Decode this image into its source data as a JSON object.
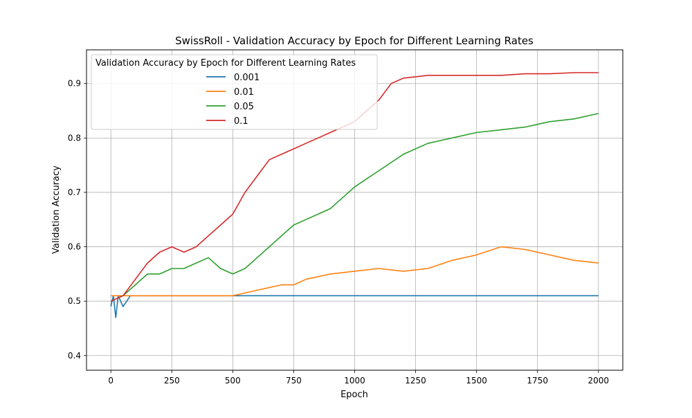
{
  "chart_data": {
    "type": "line",
    "title": "SwissRoll - Validation Accuracy by Epoch for Different Learning Rates",
    "xlabel": "Epoch",
    "ylabel": "Validation Accuracy",
    "xlim": [
      -100,
      2100
    ],
    "ylim": [
      0.373,
      0.962
    ],
    "xticks": [
      0,
      250,
      500,
      750,
      1000,
      1250,
      1500,
      1750,
      2000
    ],
    "yticks": [
      0.4,
      0.5,
      0.6,
      0.7,
      0.8,
      0.9
    ],
    "xtick_labels": [
      "0",
      "250",
      "500",
      "750",
      "1000",
      "1250",
      "1500",
      "1750",
      "2000"
    ],
    "ytick_labels": [
      "0.4",
      "0.5",
      "0.6",
      "0.7",
      "0.8",
      "0.9"
    ],
    "grid": true,
    "legend": {
      "title": "Validation Accuracy by Epoch for Different Learning Rates",
      "position": "upper-left"
    },
    "series": [
      {
        "name": "0.001",
        "color": "#1f77b4",
        "x": [
          0,
          10,
          20,
          30,
          50,
          80,
          120,
          500,
          1000,
          1500,
          2000
        ],
        "values": [
          0.49,
          0.51,
          0.47,
          0.51,
          0.49,
          0.51,
          0.51,
          0.51,
          0.51,
          0.51,
          0.51
        ]
      },
      {
        "name": "0.01",
        "color": "#ff7f0e",
        "x": [
          0,
          50,
          100,
          150,
          200,
          300,
          400,
          500,
          600,
          700,
          750,
          800,
          900,
          1000,
          1100,
          1200,
          1300,
          1400,
          1500,
          1600,
          1700,
          1800,
          1900,
          2000
        ],
        "values": [
          0.51,
          0.51,
          0.51,
          0.51,
          0.51,
          0.51,
          0.51,
          0.51,
          0.52,
          0.53,
          0.53,
          0.54,
          0.55,
          0.555,
          0.56,
          0.555,
          0.56,
          0.575,
          0.585,
          0.6,
          0.595,
          0.585,
          0.575,
          0.57
        ]
      },
      {
        "name": "0.05",
        "color": "#2ca02c",
        "x": [
          0,
          50,
          100,
          150,
          200,
          250,
          300,
          350,
          400,
          450,
          500,
          550,
          600,
          650,
          700,
          750,
          800,
          850,
          900,
          950,
          1000,
          1100,
          1200,
          1300,
          1400,
          1500,
          1600,
          1700,
          1800,
          1900,
          2000
        ],
        "values": [
          0.5,
          0.51,
          0.53,
          0.55,
          0.55,
          0.56,
          0.56,
          0.57,
          0.58,
          0.56,
          0.55,
          0.56,
          0.58,
          0.6,
          0.62,
          0.64,
          0.65,
          0.66,
          0.67,
          0.69,
          0.71,
          0.74,
          0.77,
          0.79,
          0.8,
          0.81,
          0.815,
          0.82,
          0.83,
          0.835,
          0.845
        ]
      },
      {
        "name": "0.1",
        "color": "#d62728",
        "x": [
          0,
          50,
          100,
          150,
          200,
          250,
          300,
          350,
          400,
          450,
          500,
          550,
          600,
          650,
          700,
          750,
          800,
          850,
          900,
          950,
          1000,
          1050,
          1100,
          1150,
          1200,
          1300,
          1400,
          1500,
          1600,
          1700,
          1800,
          1900,
          2000
        ],
        "values": [
          0.5,
          0.51,
          0.54,
          0.57,
          0.59,
          0.6,
          0.59,
          0.6,
          0.62,
          0.64,
          0.66,
          0.7,
          0.73,
          0.76,
          0.77,
          0.78,
          0.79,
          0.8,
          0.81,
          0.82,
          0.83,
          0.85,
          0.87,
          0.9,
          0.91,
          0.915,
          0.915,
          0.915,
          0.915,
          0.918,
          0.918,
          0.92,
          0.92
        ]
      }
    ]
  }
}
